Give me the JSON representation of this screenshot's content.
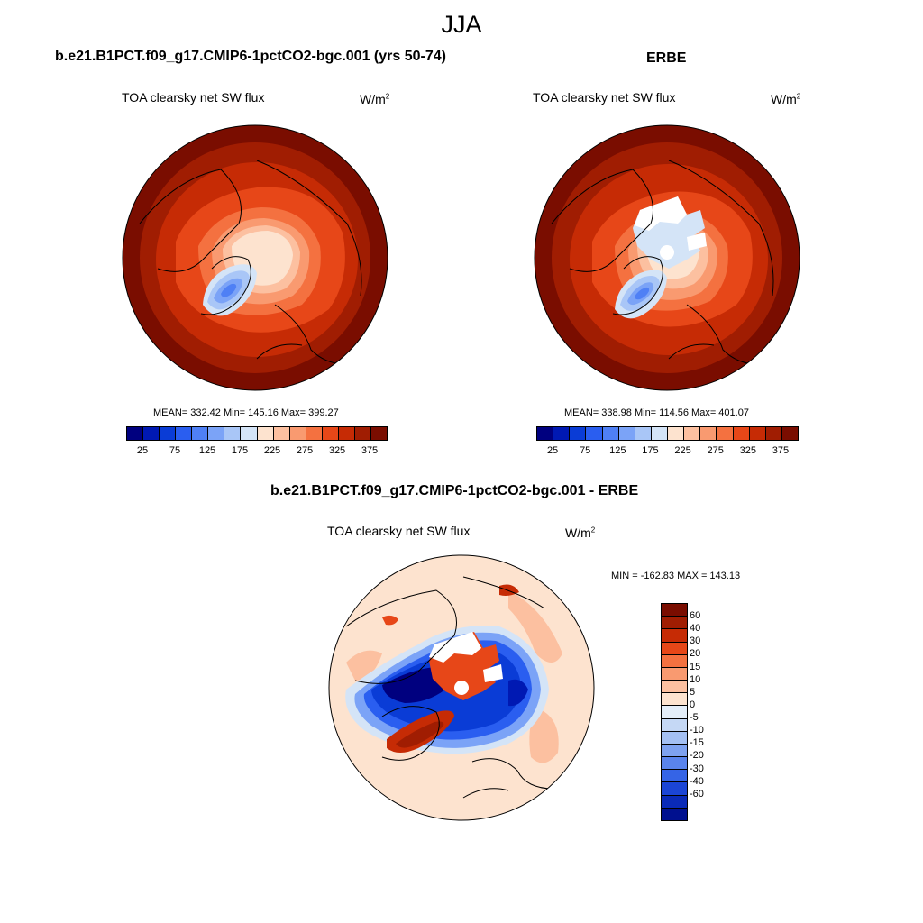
{
  "figure": {
    "season": "JJA"
  },
  "panels": [
    {
      "id": "model",
      "title": "b.e21.B1PCT.f09_g17.CMIP6-1pctCO2-bgc.001 (yrs 50-74)",
      "variable": "TOA clearsky net SW flux",
      "units": "W/m",
      "units_exp": "2",
      "stats": "MEAN= 332.42  Min= 145.16  Max= 399.27"
    },
    {
      "id": "obs",
      "title": "ERBE",
      "variable": "TOA clearsky net SW flux",
      "units": "W/m",
      "units_exp": "2",
      "stats": "MEAN= 338.98  Min= 114.56  Max= 401.07"
    },
    {
      "id": "diff",
      "title": "b.e21.B1PCT.f09_g17.CMIP6-1pctCO2-bgc.001 - ERBE",
      "variable": "TOA clearsky net SW flux",
      "units": "W/m",
      "units_exp": "2",
      "stats": "MIN = -162.83 MAX = 143.13"
    }
  ],
  "colorbar_abs": {
    "colors": [
      "#00007f",
      "#0019b3",
      "#0a3cd6",
      "#2a5ef0",
      "#4f80f5",
      "#7ba3f7",
      "#a9c6f7",
      "#d4e4f7",
      "#fde3cf",
      "#fcc0a0",
      "#f99a70",
      "#f47140",
      "#e74718",
      "#c62b05",
      "#a01d02",
      "#7a0d00"
    ],
    "tick_labels": [
      "25",
      "75",
      "125",
      "175",
      "225",
      "275",
      "325",
      "375"
    ]
  },
  "colorbar_diff": {
    "colors": [
      "#7a0d00",
      "#a01d02",
      "#c62b05",
      "#e74718",
      "#f47140",
      "#f99a70",
      "#fcc0a0",
      "#fde3cf",
      "#e4eef9",
      "#c5d8f5",
      "#a4c0f3",
      "#7ea2f0",
      "#5a84ec",
      "#3564e6",
      "#1b45d6",
      "#0a2ab8",
      "#00108f"
    ],
    "tick_labels": [
      "60",
      "40",
      "30",
      "20",
      "15",
      "10",
      "5",
      "0",
      "-5",
      "-10",
      "-15",
      "-20",
      "-30",
      "-40",
      "-60"
    ]
  }
}
